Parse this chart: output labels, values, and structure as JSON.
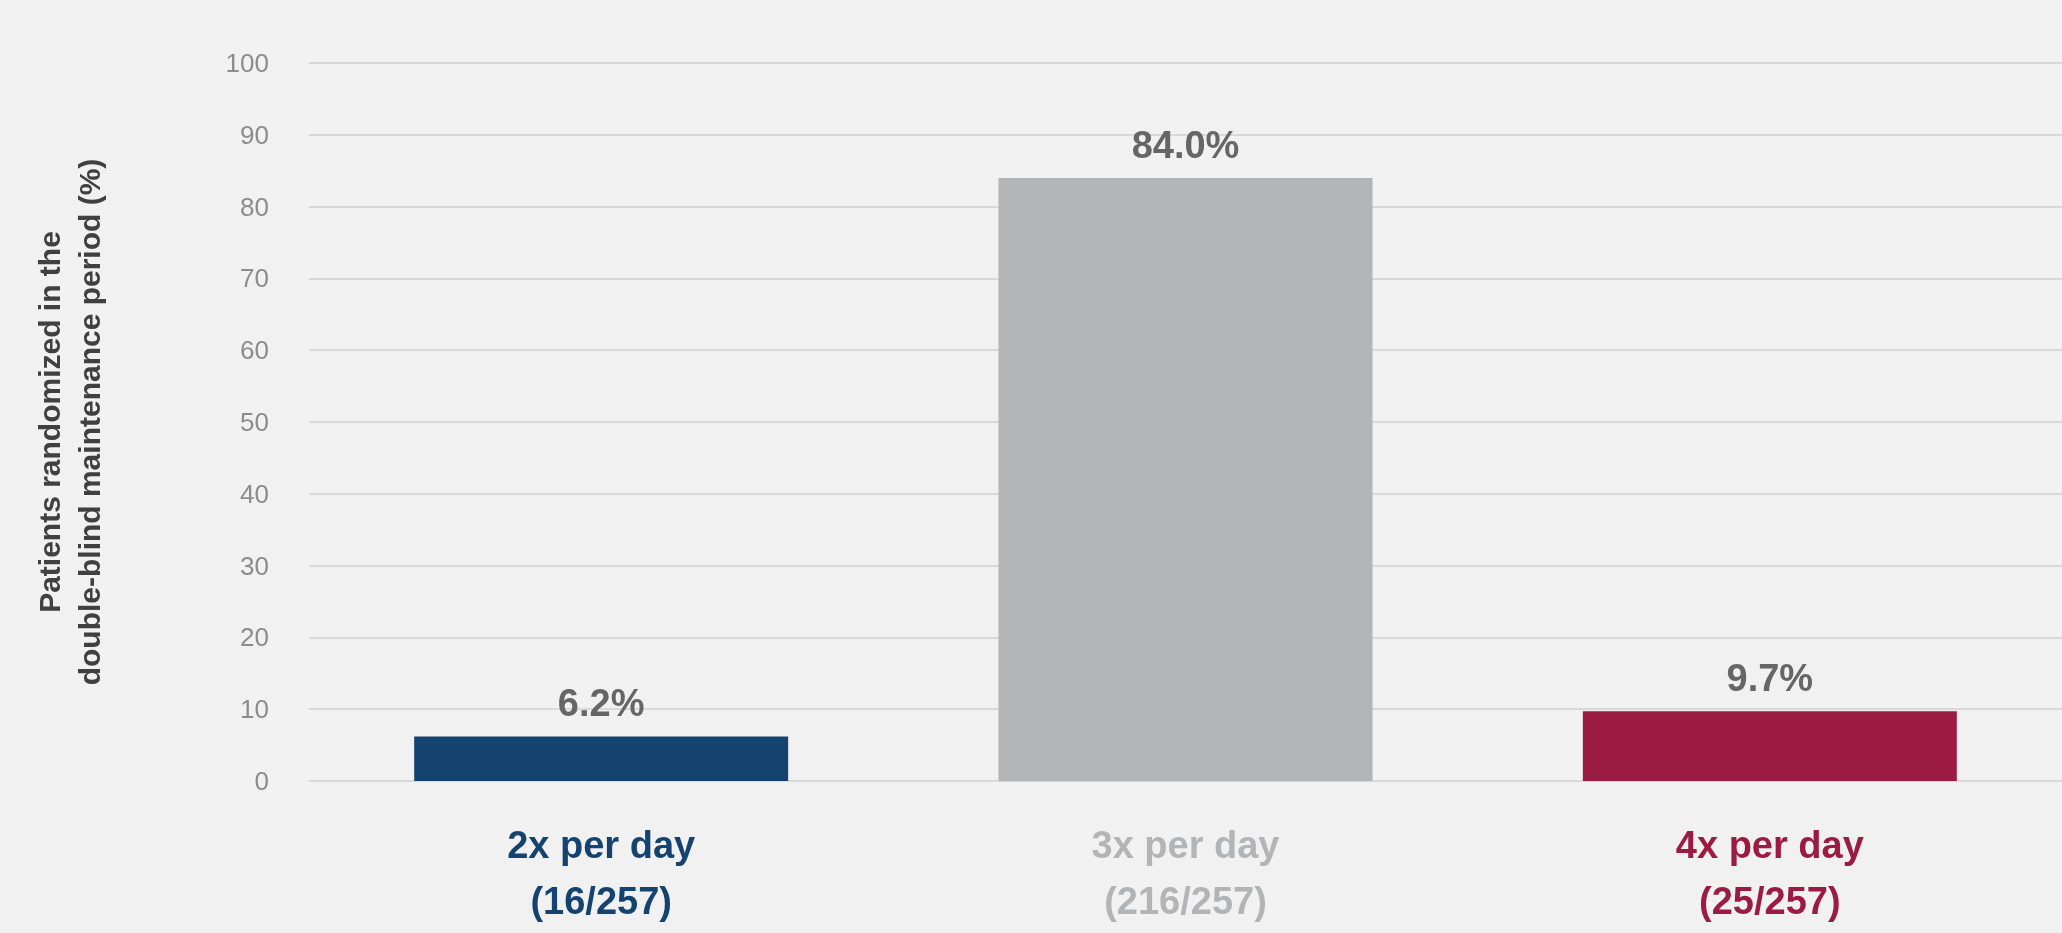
{
  "chart_data": {
    "type": "bar",
    "ylabel": "Patients randomized in the double-blind maintenance period (%)",
    "categories": [
      "2x per day\n(16/257)",
      "3x per day\n(216/257)",
      "4x per day\n(25/257)"
    ],
    "values": [
      6.2,
      84.0,
      9.7
    ],
    "value_labels": [
      "6.2%",
      "84.0%",
      "9.7%"
    ],
    "colors": [
      "#144370",
      "#b3b4b6",
      "#9b1b42"
    ],
    "ylim": [
      0,
      100
    ],
    "yticks": [
      0,
      10,
      20,
      30,
      40,
      50,
      60,
      70,
      80,
      90,
      100
    ],
    "grid": "y"
  }
}
